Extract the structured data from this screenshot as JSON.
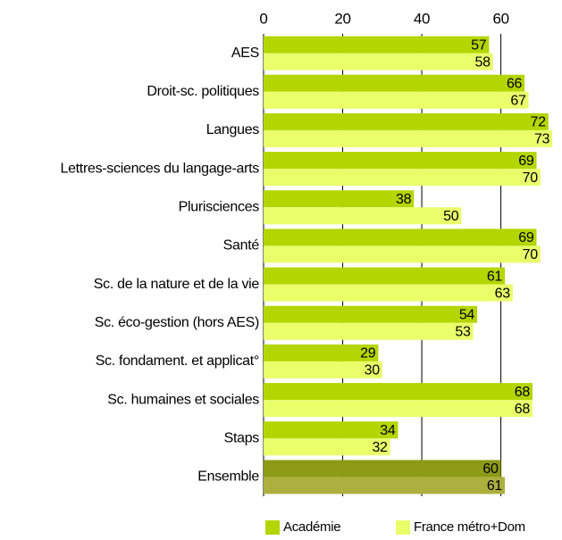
{
  "chart_data": {
    "type": "bar",
    "orientation": "horizontal",
    "categories": [
      "AES",
      "Droit-sc. politiques",
      "Langues",
      "Lettres-sciences du langage-arts",
      "Plurisciences",
      "Santé",
      "Sc. de la nature et de la vie",
      "Sc. éco-gestion (hors AES)",
      "Sc. fondament. et applicat°",
      "Sc. humaines et sociales",
      "Staps",
      "Ensemble"
    ],
    "series": [
      {
        "name": "Académie",
        "color": "#b3d600",
        "colors": [
          "#b3d600",
          "#b3d600",
          "#b3d600",
          "#b3d600",
          "#b3d600",
          "#b3d600",
          "#b3d600",
          "#b3d600",
          "#b3d600",
          "#b3d600",
          "#b3d600",
          "#8c9a14"
        ],
        "values": [
          57,
          66,
          72,
          69,
          38,
          69,
          61,
          54,
          29,
          68,
          34,
          60
        ]
      },
      {
        "name": "France métro+Dom",
        "color": "#e8ff6a",
        "colors": [
          "#e8ff6a",
          "#e8ff6a",
          "#e8ff6a",
          "#e8ff6a",
          "#e8ff6a",
          "#e8ff6a",
          "#e8ff6a",
          "#e8ff6a",
          "#e8ff6a",
          "#e8ff6a",
          "#e8ff6a",
          "#acb03e"
        ],
        "values": [
          58,
          67,
          73,
          70,
          50,
          70,
          63,
          53,
          30,
          68,
          32,
          61
        ]
      }
    ],
    "xlim": [
      0,
      75
    ],
    "xticks": [
      0,
      20,
      40,
      60
    ],
    "grid": true,
    "legend": "bottom"
  }
}
